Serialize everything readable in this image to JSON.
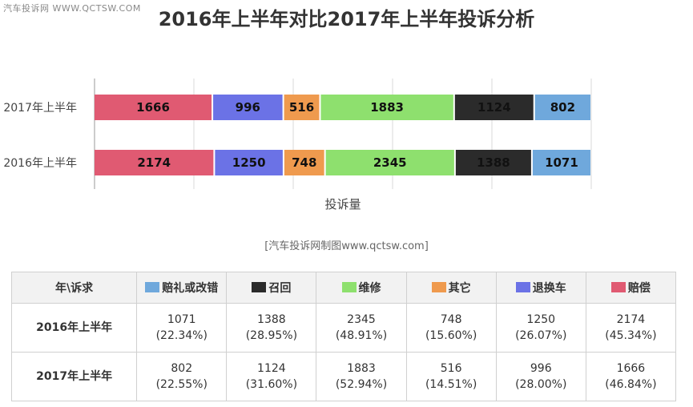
{
  "header": {
    "watermark": "汽车投诉网 WWW.QCTSW.COM",
    "title": "2016年上半年对比2017年上半年投诉分析"
  },
  "source": "[汽车投诉网制图www.qctsw.com]",
  "chart_data": {
    "type": "bar",
    "orientation": "horizontal",
    "stacked": true,
    "categories": [
      "2017年上半年",
      "2016年上半年"
    ],
    "series": [
      {
        "name": "赔偿",
        "color": "#e05a72",
        "values": [
          1666,
          2174
        ]
      },
      {
        "name": "退换车",
        "color": "#6b72e6",
        "values": [
          996,
          1250
        ]
      },
      {
        "name": "其它",
        "color": "#ef9a4e",
        "values": [
          516,
          748
        ]
      },
      {
        "name": "维修",
        "color": "#8ee06e",
        "values": [
          1883,
          2345
        ]
      },
      {
        "name": "召回",
        "color": "#2b2b2b",
        "values": [
          1124,
          1388
        ]
      },
      {
        "name": "赔礼或改错",
        "color": "#6fa8dc",
        "values": [
          802,
          1071
        ]
      }
    ],
    "xlabel": "投诉量",
    "xlim": [
      0,
      10000
    ],
    "grid": true
  },
  "table": {
    "corner": "年\\诉求",
    "columns": [
      {
        "label": "赔礼或改错",
        "color": "#6fa8dc"
      },
      {
        "label": "召回",
        "color": "#2b2b2b"
      },
      {
        "label": "维修",
        "color": "#8ee06e"
      },
      {
        "label": "其它",
        "color": "#ef9a4e"
      },
      {
        "label": "退换车",
        "color": "#6b72e6"
      },
      {
        "label": "赔偿",
        "color": "#e05a72"
      }
    ],
    "rows": [
      {
        "label": "2016年上半年",
        "cells": [
          {
            "value": "1071",
            "pct": "(22.34%)"
          },
          {
            "value": "1388",
            "pct": "(28.95%)"
          },
          {
            "value": "2345",
            "pct": "(48.91%)"
          },
          {
            "value": "748",
            "pct": "(15.60%)"
          },
          {
            "value": "1250",
            "pct": "(26.07%)"
          },
          {
            "value": "2174",
            "pct": "(45.34%)"
          }
        ]
      },
      {
        "label": "2017年上半年",
        "cells": [
          {
            "value": "802",
            "pct": "(22.55%)"
          },
          {
            "value": "1124",
            "pct": "(31.60%)"
          },
          {
            "value": "1883",
            "pct": "(52.94%)"
          },
          {
            "value": "516",
            "pct": "(14.51%)"
          },
          {
            "value": "996",
            "pct": "(28.00%)"
          },
          {
            "value": "1666",
            "pct": "(46.84%)"
          }
        ]
      }
    ]
  }
}
